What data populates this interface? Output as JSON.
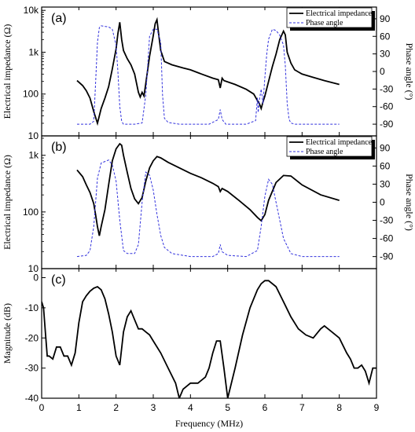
{
  "figure": {
    "xlabel": "Frequency (MHz)",
    "x_ticks": [
      "0",
      "1",
      "2",
      "3",
      "4",
      "5",
      "6",
      "7",
      "8",
      "9"
    ],
    "colors": {
      "impedance": "#000000",
      "phase": "#3333dd",
      "axes": "#000000"
    }
  },
  "chart_data": [
    {
      "panel": "(a)",
      "type": "line",
      "xlim": [
        0,
        9
      ],
      "ylabel": "Electrical impedance (Ω)",
      "y_scale": "log",
      "ylim": [
        10,
        12000
      ],
      "y_ticks": [
        "10",
        "100",
        "1k",
        "10k"
      ],
      "y2label": "Phase angle (°)",
      "y2lim": [
        -110,
        110
      ],
      "y2_ticks": [
        "90",
        "60",
        "30",
        "0",
        "-30",
        "-60",
        "-90"
      ],
      "legend": [
        "Electrical impedance",
        "Phase angle"
      ],
      "legend_position": "top-right",
      "series": [
        {
          "name": "Electrical impedance",
          "axis": "left",
          "style": "solid",
          "x": [
            0.95,
            1.1,
            1.2,
            1.3,
            1.4,
            1.5,
            1.6,
            1.7,
            1.8,
            1.9,
            2.0,
            2.05,
            2.1,
            2.15,
            2.2,
            2.3,
            2.4,
            2.5,
            2.6,
            2.65,
            2.7,
            2.75,
            2.8,
            2.9,
            3.0,
            3.05,
            3.1,
            3.15,
            3.2,
            3.3,
            3.5,
            3.8,
            4.0,
            4.3,
            4.6,
            4.75,
            4.8,
            4.85,
            4.9,
            5.2,
            5.5,
            5.7,
            5.8,
            5.85,
            5.9,
            5.95,
            6.0,
            6.1,
            6.2,
            6.3,
            6.4,
            6.5,
            6.55,
            6.6,
            6.7,
            6.8,
            7.0,
            7.3,
            7.6,
            8.0
          ],
          "values": [
            210,
            160,
            120,
            80,
            38,
            20,
            45,
            80,
            150,
            400,
            1200,
            2800,
            5200,
            2000,
            1100,
            700,
            500,
            300,
            110,
            85,
            110,
            90,
            180,
            800,
            2500,
            4800,
            6000,
            2500,
            1100,
            600,
            500,
            420,
            380,
            300,
            240,
            220,
            140,
            240,
            210,
            170,
            130,
            100,
            70,
            60,
            45,
            65,
            90,
            200,
            450,
            900,
            2000,
            3200,
            2600,
            1000,
            550,
            380,
            300,
            250,
            210,
            170
          ]
        },
        {
          "name": "Phase angle",
          "axis": "right",
          "style": "dashed",
          "x": [
            0.95,
            1.3,
            1.4,
            1.45,
            1.5,
            1.55,
            1.6,
            1.8,
            1.9,
            2.0,
            2.05,
            2.1,
            2.15,
            2.2,
            2.3,
            2.5,
            2.7,
            2.8,
            2.9,
            3.0,
            3.1,
            3.2,
            3.25,
            3.3,
            3.4,
            3.7,
            4.5,
            4.75,
            4.8,
            4.85,
            4.95,
            5.5,
            5.75,
            5.8,
            5.82,
            5.85,
            5.9,
            5.95,
            6.0,
            6.05,
            6.1,
            6.2,
            6.3,
            6.4,
            6.5,
            6.55,
            6.6,
            6.65,
            6.7,
            6.8,
            7.0,
            8.0
          ],
          "values": [
            -90,
            -90,
            -85,
            -20,
            50,
            75,
            78,
            76,
            72,
            45,
            0,
            -60,
            -85,
            -90,
            -90,
            -90,
            -88,
            -40,
            60,
            72,
            72,
            50,
            -40,
            -80,
            -87,
            -90,
            -90,
            -82,
            -65,
            -82,
            -90,
            -90,
            -84,
            -45,
            -70,
            -50,
            -30,
            -55,
            -10,
            30,
            55,
            72,
            70,
            62,
            45,
            10,
            -55,
            -82,
            -88,
            -90,
            -90,
            -90
          ]
        }
      ]
    },
    {
      "panel": "(b)",
      "type": "line",
      "xlim": [
        0,
        9
      ],
      "ylabel": "Electrical impedance (Ω)",
      "y_scale": "log",
      "ylim": [
        10,
        2200
      ],
      "y_ticks": [
        "10",
        "100",
        "1k"
      ],
      "y2label": "Phase angle (°)",
      "y2lim": [
        -110,
        110
      ],
      "y2_ticks": [
        "90",
        "60",
        "30",
        "0",
        "-30",
        "-60",
        "-90"
      ],
      "legend": [
        "Electrical impedance",
        "Phase angle"
      ],
      "legend_position": "top-right",
      "series": [
        {
          "name": "Electrical impedance",
          "axis": "left",
          "style": "solid",
          "x": [
            0.95,
            1.1,
            1.2,
            1.3,
            1.4,
            1.45,
            1.5,
            1.55,
            1.6,
            1.7,
            1.8,
            1.9,
            2.0,
            2.1,
            2.15,
            2.2,
            2.3,
            2.4,
            2.5,
            2.6,
            2.7,
            2.8,
            2.9,
            3.0,
            3.1,
            3.2,
            3.4,
            3.7,
            4.0,
            4.3,
            4.6,
            4.75,
            4.8,
            4.85,
            5.0,
            5.3,
            5.6,
            5.8,
            5.9,
            6.0,
            6.1,
            6.3,
            6.5,
            6.7,
            7.0,
            7.5,
            8.0
          ],
          "values": [
            550,
            420,
            300,
            220,
            140,
            90,
            55,
            38,
            55,
            110,
            300,
            800,
            1300,
            1600,
            1500,
            1000,
            500,
            260,
            170,
            140,
            180,
            350,
            600,
            800,
            950,
            900,
            750,
            600,
            480,
            400,
            320,
            280,
            230,
            260,
            230,
            160,
            110,
            80,
            70,
            90,
            160,
            330,
            440,
            430,
            300,
            200,
            160
          ]
        },
        {
          "name": "Phase angle",
          "axis": "right",
          "style": "dashed",
          "x": [
            0.95,
            1.2,
            1.3,
            1.4,
            1.5,
            1.6,
            1.8,
            1.9,
            2.0,
            2.1,
            2.2,
            2.3,
            2.5,
            2.6,
            2.7,
            2.8,
            2.9,
            3.0,
            3.1,
            3.2,
            3.3,
            3.5,
            4.0,
            4.6,
            4.75,
            4.8,
            4.85,
            5.0,
            5.5,
            5.8,
            5.9,
            6.0,
            6.1,
            6.2,
            6.3,
            6.5,
            6.7,
            7.0,
            8.0
          ],
          "values": [
            -90,
            -88,
            -80,
            -40,
            40,
            65,
            70,
            62,
            35,
            -30,
            -80,
            -85,
            -85,
            -70,
            0,
            50,
            45,
            20,
            -20,
            -55,
            -75,
            -85,
            -90,
            -90,
            -85,
            -70,
            -82,
            -88,
            -90,
            -80,
            -40,
            10,
            38,
            30,
            0,
            -60,
            -85,
            -90,
            -90
          ]
        }
      ]
    },
    {
      "panel": "(c)",
      "type": "line",
      "xlim": [
        0,
        9
      ],
      "ylabel": "Magnitude (dB)",
      "ylim": [
        -40,
        3
      ],
      "y_ticks": [
        "0",
        "-10",
        "-20",
        "-30",
        "-40"
      ],
      "series": [
        {
          "style": "solid",
          "x": [
            0,
            0.05,
            0.1,
            0.15,
            0.2,
            0.3,
            0.4,
            0.5,
            0.6,
            0.7,
            0.8,
            0.9,
            1.0,
            1.1,
            1.2,
            1.3,
            1.4,
            1.5,
            1.6,
            1.7,
            1.8,
            1.9,
            2.0,
            2.1,
            2.2,
            2.3,
            2.4,
            2.5,
            2.6,
            2.7,
            2.8,
            2.9,
            3.0,
            3.2,
            3.4,
            3.6,
            3.7,
            3.8,
            4.0,
            4.2,
            4.4,
            4.5,
            4.6,
            4.7,
            4.8,
            4.9,
            5.0,
            5.2,
            5.4,
            5.6,
            5.8,
            5.9,
            6.0,
            6.1,
            6.3,
            6.5,
            6.7,
            6.9,
            7.1,
            7.3,
            7.5,
            7.6,
            7.8,
            8.0,
            8.2,
            8.3,
            8.4,
            8.5,
            8.6,
            8.7,
            8.8,
            8.9,
            9.0
          ],
          "values": [
            -8,
            -10,
            -18,
            -26,
            -26,
            -27,
            -23,
            -23,
            -26,
            -26,
            -29,
            -25,
            -15,
            -8,
            -6,
            -4.5,
            -3.5,
            -3,
            -4,
            -7,
            -12,
            -18,
            -26,
            -29,
            -18,
            -13,
            -11,
            -14,
            -17,
            -17,
            -18,
            -19,
            -21,
            -25,
            -30,
            -35,
            -40,
            -37,
            -35,
            -35,
            -33,
            -30,
            -25,
            -21,
            -21,
            -30,
            -40,
            -30,
            -19,
            -10,
            -4,
            -2,
            -1,
            -1,
            -3,
            -8,
            -13,
            -17,
            -19,
            -20,
            -17,
            -16,
            -18,
            -20,
            -25,
            -27,
            -30,
            -30,
            -29,
            -31,
            -35,
            -30,
            -30
          ]
        }
      ]
    }
  ]
}
